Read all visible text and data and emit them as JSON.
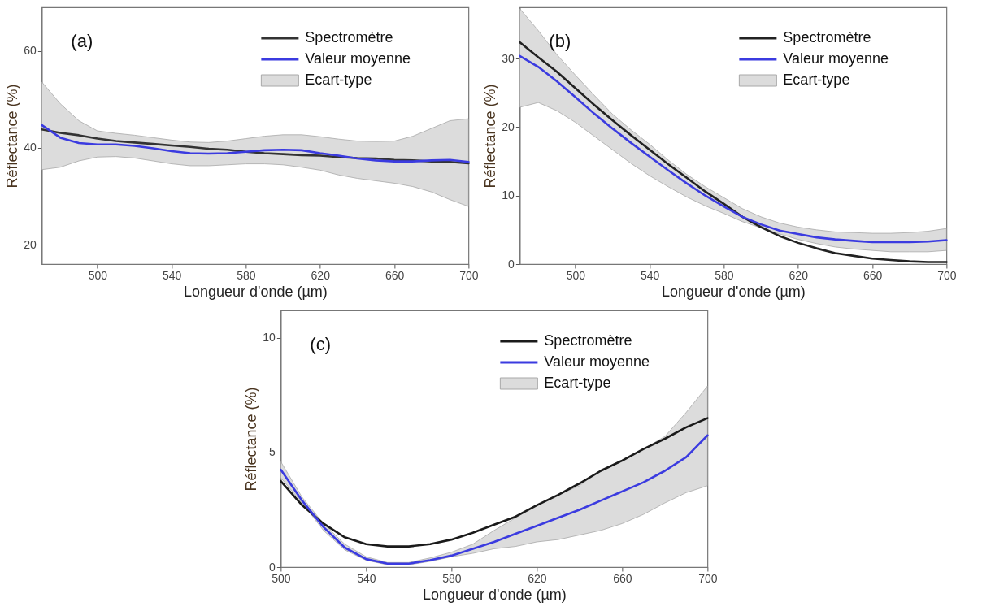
{
  "chart_data": [
    {
      "type": "line",
      "annotations": [
        "(a)"
      ],
      "xlabel": "Longueur d'onde (µm)",
      "ylabel": "Réflectance (%)",
      "x": [
        470,
        480,
        490,
        500,
        510,
        520,
        530,
        540,
        550,
        560,
        570,
        580,
        590,
        600,
        610,
        620,
        630,
        640,
        650,
        660,
        670,
        680,
        690,
        700
      ],
      "xlim": [
        470,
        700
      ],
      "ylim": [
        16,
        69
      ],
      "xticks": [
        500,
        540,
        580,
        620,
        660,
        700
      ],
      "yticks": [
        20,
        40,
        60
      ],
      "legend": "top right",
      "series": [
        {
          "name": "Ecart-type",
          "type": "area",
          "color": "#dcdcdc",
          "values": [
            null,
            null,
            null,
            null,
            null,
            null,
            null,
            null,
            null,
            null,
            null,
            null,
            null,
            null,
            null,
            null,
            null,
            null,
            null,
            null,
            null,
            null,
            null,
            null
          ],
          "lower": [
            35.5,
            36.0,
            37.3,
            38.1,
            38.2,
            37.9,
            37.3,
            36.7,
            36.3,
            36.3,
            36.5,
            36.7,
            36.7,
            36.5,
            36.0,
            35.4,
            34.4,
            33.7,
            33.2,
            32.7,
            32.0,
            30.9,
            29.3,
            27.9
          ],
          "upper": [
            53.6,
            49.1,
            45.6,
            43.5,
            43.0,
            42.6,
            42.1,
            41.6,
            41.2,
            41.1,
            41.4,
            41.9,
            42.4,
            42.7,
            42.7,
            42.3,
            41.8,
            41.4,
            41.3,
            41.4,
            42.4,
            44.0,
            45.6,
            46.0
          ]
        },
        {
          "name": "Spectromètre",
          "type": "line",
          "color": "#333333",
          "values": [
            43.8,
            43.1,
            42.6,
            41.9,
            41.4,
            41.1,
            40.8,
            40.5,
            40.2,
            39.8,
            39.6,
            39.2,
            38.9,
            38.7,
            38.5,
            38.4,
            38.1,
            37.9,
            37.8,
            37.5,
            37.4,
            37.2,
            37.1,
            36.8
          ]
        },
        {
          "name": "Valeur moyenne",
          "type": "line",
          "color": "#3b3be0",
          "values": [
            44.7,
            42.1,
            41.0,
            40.7,
            40.7,
            40.4,
            39.9,
            39.3,
            38.9,
            38.8,
            38.9,
            39.2,
            39.5,
            39.6,
            39.5,
            38.9,
            38.4,
            37.8,
            37.4,
            37.2,
            37.2,
            37.4,
            37.5,
            37.1
          ]
        }
      ]
    },
    {
      "type": "line",
      "annotations": [
        "(b)"
      ],
      "xlabel": "Longueur d'onde (µm)",
      "ylabel": "Réflectance (%)",
      "x": [
        470,
        480,
        490,
        500,
        510,
        520,
        530,
        540,
        550,
        560,
        570,
        580,
        590,
        600,
        610,
        620,
        630,
        640,
        650,
        660,
        670,
        680,
        690,
        700
      ],
      "xlim": [
        470,
        700
      ],
      "ylim": [
        0,
        37.5
      ],
      "xticks": [
        500,
        540,
        580,
        620,
        660,
        700
      ],
      "yticks": [
        0,
        10,
        20,
        30
      ],
      "legend": "top right",
      "series": [
        {
          "name": "Ecart-type",
          "type": "area",
          "color": "#dcdcdc",
          "values": [
            null,
            null,
            null,
            null,
            null,
            null,
            null,
            null,
            null,
            null,
            null,
            null,
            null,
            null,
            null,
            null,
            null,
            null,
            null,
            null,
            null,
            null,
            null,
            null
          ],
          "lower": [
            22.9,
            23.6,
            22.4,
            20.7,
            18.7,
            16.7,
            14.7,
            12.9,
            11.3,
            9.8,
            8.5,
            7.4,
            6.2,
            5.3,
            4.4,
            3.6,
            3.0,
            2.5,
            2.2,
            2.0,
            1.8,
            1.8,
            1.8,
            2.0
          ],
          "upper": [
            37.3,
            34.1,
            30.6,
            27.6,
            24.7,
            21.9,
            19.6,
            17.5,
            15.2,
            13.1,
            11.3,
            9.7,
            8.1,
            6.9,
            6.0,
            5.4,
            5.0,
            4.7,
            4.6,
            4.5,
            4.5,
            4.6,
            4.8,
            5.2
          ]
        },
        {
          "name": "Spectromètre",
          "type": "line",
          "color": "#222222",
          "values": [
            32.4,
            30.2,
            28.1,
            25.7,
            23.3,
            21.0,
            18.8,
            16.7,
            14.6,
            12.6,
            10.6,
            8.8,
            6.9,
            5.4,
            4.1,
            3.1,
            2.3,
            1.6,
            1.2,
            0.8,
            0.6,
            0.4,
            0.3,
            0.3
          ]
        },
        {
          "name": "Valeur moyenne",
          "type": "line",
          "color": "#3b3be0",
          "values": [
            30.4,
            28.8,
            26.7,
            24.4,
            22.0,
            19.8,
            17.7,
            15.7,
            13.7,
            11.8,
            10.0,
            8.4,
            6.9,
            5.8,
            4.9,
            4.4,
            3.9,
            3.6,
            3.4,
            3.2,
            3.2,
            3.2,
            3.3,
            3.5
          ]
        }
      ]
    },
    {
      "type": "line",
      "annotations": [
        "(c)"
      ],
      "xlabel": "Longueur d'onde (µm)",
      "ylabel": "Réflectance (%)",
      "x": [
        500,
        510,
        520,
        530,
        540,
        550,
        560,
        570,
        580,
        590,
        600,
        610,
        620,
        630,
        640,
        650,
        660,
        670,
        680,
        690,
        700
      ],
      "xlim": [
        500,
        700
      ],
      "ylim": [
        0,
        11.2
      ],
      "xticks": [
        500,
        540,
        580,
        620,
        660,
        700
      ],
      "yticks": [
        0,
        5,
        10
      ],
      "legend": "top right",
      "series": [
        {
          "name": "Ecart-type",
          "type": "area",
          "color": "#dcdcdc",
          "values": [
            null,
            null,
            null,
            null,
            null,
            null,
            null,
            null,
            null,
            null,
            null,
            null,
            null,
            null,
            null,
            null,
            null,
            null,
            null,
            null,
            null
          ],
          "lower": [
            3.9,
            2.8,
            1.6,
            0.75,
            0.3,
            0.1,
            0.1,
            0.25,
            0.45,
            0.6,
            0.8,
            0.9,
            1.1,
            1.2,
            1.4,
            1.6,
            1.9,
            2.3,
            2.8,
            3.25,
            3.55
          ],
          "upper": [
            4.6,
            3.05,
            1.9,
            1.0,
            0.45,
            0.2,
            0.2,
            0.4,
            0.65,
            1.0,
            1.6,
            2.15,
            2.7,
            3.15,
            3.55,
            4.25,
            4.6,
            5.15,
            5.7,
            6.75,
            7.9
          ]
        },
        {
          "name": "Spectromètre",
          "type": "line",
          "color": "#1a1a1a",
          "values": [
            3.75,
            2.7,
            1.9,
            1.3,
            1.0,
            0.9,
            0.9,
            1.0,
            1.2,
            1.5,
            1.85,
            2.2,
            2.7,
            3.15,
            3.65,
            4.2,
            4.65,
            5.15,
            5.6,
            6.1,
            6.5
          ]
        },
        {
          "name": "Valeur moyenne",
          "type": "line",
          "color": "#3b3be0",
          "values": [
            4.25,
            2.9,
            1.75,
            0.85,
            0.35,
            0.15,
            0.15,
            0.3,
            0.5,
            0.8,
            1.1,
            1.45,
            1.8,
            2.15,
            2.5,
            2.9,
            3.3,
            3.7,
            4.2,
            4.8,
            5.75
          ]
        }
      ]
    }
  ]
}
